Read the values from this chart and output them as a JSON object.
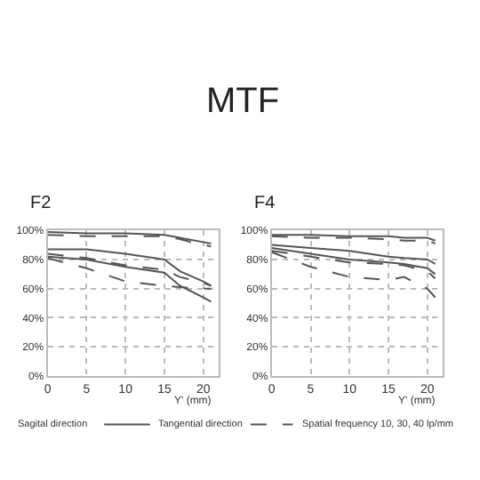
{
  "chart_data": [
    {
      "type": "line",
      "title": "F2",
      "xlabel": "Y' (mm)",
      "x": [
        0,
        5,
        10,
        15,
        17,
        20,
        21
      ],
      "annotations": [
        "MTF"
      ],
      "series": [
        {
          "color": "#555555",
          "line_style": "solid",
          "values": [
            99,
            98,
            98,
            97,
            95,
            92,
            91
          ]
        },
        {
          "color": "#555555",
          "line_style": "dashed",
          "values": [
            97,
            96,
            96,
            96,
            94,
            90,
            89
          ]
        },
        {
          "color": "#555555",
          "line_style": "solid",
          "values": [
            87,
            87,
            84,
            80,
            72,
            65,
            62
          ]
        },
        {
          "color": "#555555",
          "line_style": "dashed",
          "values": [
            84,
            81,
            76,
            73,
            68,
            64,
            62
          ]
        },
        {
          "color": "#555555",
          "line_style": "solid",
          "values": [
            82,
            80,
            75,
            71,
            62,
            54,
            51
          ]
        },
        {
          "color": "#555555",
          "line_style": "dashed",
          "values": [
            81,
            74,
            65,
            62,
            61,
            60,
            60
          ]
        }
      ],
      "xlim": [
        0,
        22
      ],
      "xticks": [
        0,
        5,
        10,
        15,
        20
      ],
      "ylim": [
        0,
        100
      ],
      "yticks": [
        {
          "value": 0,
          "label": "0%"
        },
        {
          "value": 20,
          "label": "20%"
        },
        {
          "value": 40,
          "label": "40%"
        },
        {
          "value": 60,
          "label": "60%"
        },
        {
          "value": 80,
          "label": "80%"
        },
        {
          "value": 100,
          "label": "100%"
        }
      ],
      "grid": true
    },
    {
      "type": "line",
      "title": "F4",
      "xlabel": "Y' (mm)",
      "x": [
        0,
        5,
        10,
        15,
        17,
        20,
        21
      ],
      "annotations": [
        "Sagital direction",
        "Tangential direction",
        "Spatial frequency 10, 30, 40 lp/mm"
      ],
      "series": [
        {
          "color": "#555555",
          "line_style": "solid",
          "values": [
            97,
            97,
            96,
            96,
            95,
            95,
            93
          ]
        },
        {
          "color": "#555555",
          "line_style": "dashed",
          "values": [
            96,
            95,
            95,
            94,
            93,
            93,
            91
          ]
        },
        {
          "color": "#555555",
          "line_style": "solid",
          "values": [
            90,
            88,
            86,
            82,
            81,
            80,
            77
          ]
        },
        {
          "color": "#555555",
          "line_style": "solid",
          "values": [
            88,
            84,
            80,
            78,
            77,
            74,
            70
          ]
        },
        {
          "color": "#555555",
          "line_style": "dashed",
          "values": [
            86,
            82,
            78,
            77,
            76,
            72,
            67
          ]
        },
        {
          "color": "#555555",
          "line_style": "dashed",
          "values": [
            85,
            75,
            68,
            66,
            68,
            60,
            54
          ]
        }
      ],
      "xlim": [
        0,
        22
      ],
      "xticks": [
        0,
        5,
        10,
        15,
        20
      ],
      "ylim": [
        0,
        100
      ],
      "yticks": [
        {
          "value": 0,
          "label": "0%"
        },
        {
          "value": 20,
          "label": "20%"
        },
        {
          "value": 40,
          "label": "40%"
        },
        {
          "value": 60,
          "label": "60%"
        },
        {
          "value": 80,
          "label": "80%"
        },
        {
          "value": 100,
          "label": "100%"
        }
      ],
      "grid": true
    }
  ]
}
